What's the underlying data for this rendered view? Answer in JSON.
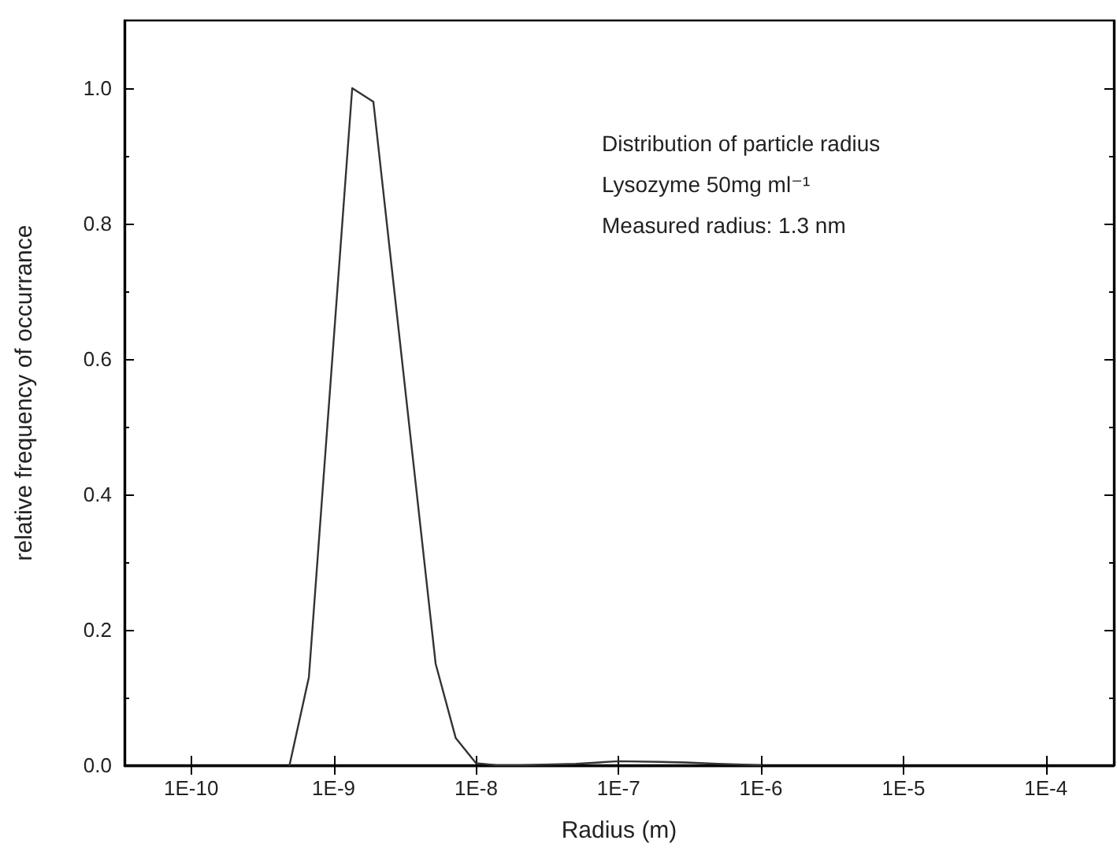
{
  "chart_data": {
    "type": "line",
    "xlabel": "Radius (m)",
    "ylabel": "relative frequency of occurrance",
    "annotations": [
      "Distribution of particle radius",
      "Lysozyme 50mg ml⁻¹",
      "Measured radius: 1.3 nm"
    ],
    "series": [
      {
        "color": "#333333",
        "x": [
          4.9e-10,
          6.7e-10,
          1.35e-09,
          1.9e-09,
          5.2e-09,
          7.2e-09,
          1e-08,
          1.4e-08,
          2e-08,
          5e-08,
          1e-07,
          2e-07,
          3e-07,
          5e-07,
          1e-06
        ],
        "values": [
          0,
          0.13,
          1.0,
          0.98,
          0.15,
          0.04,
          0.003,
          0,
          0,
          0.002,
          0.006,
          0.005,
          0.004,
          0.002,
          0
        ]
      }
    ],
    "log": "x",
    "xlim": [
      3.4e-11,
      0.0003
    ],
    "xticks": [
      {
        "value": 1e-10,
        "label": "1E-10"
      },
      {
        "value": 1e-09,
        "label": "1E-9"
      },
      {
        "value": 1e-08,
        "label": "1E-8"
      },
      {
        "value": 1e-07,
        "label": "1E-7"
      },
      {
        "value": 1e-06,
        "label": "1E-6"
      },
      {
        "value": 1e-05,
        "label": "1E-5"
      },
      {
        "value": 0.0001,
        "label": "1E-4"
      }
    ],
    "ylim": [
      0,
      1.1
    ],
    "yticks": [
      {
        "value": 0,
        "label": "0.0"
      },
      0.2,
      0.4,
      0.6,
      0.8,
      {
        "value": 1,
        "label": "1.0"
      }
    ],
    "grid": false,
    "marker": "none",
    "line_style": "solid"
  }
}
